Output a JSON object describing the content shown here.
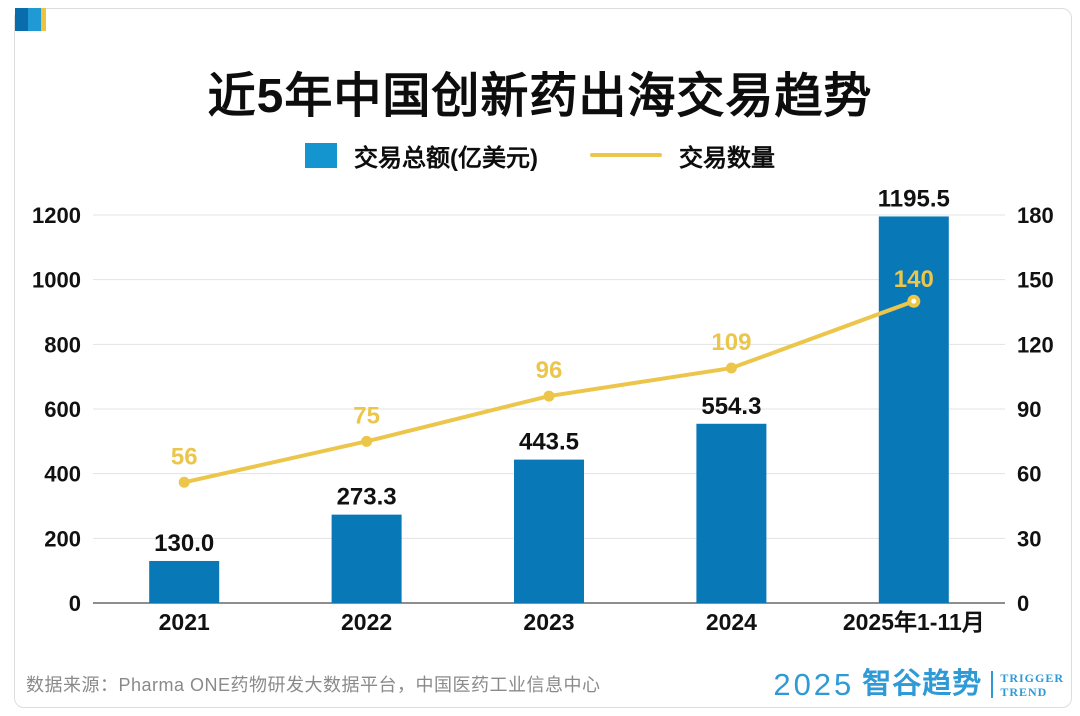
{
  "title": "近5年中国创新药出海交易趋势",
  "legend": {
    "bar_label": "交易总额(亿美元)",
    "line_label": "交易数量"
  },
  "chart_data": {
    "type": "bar+line combo",
    "categories": [
      "2021",
      "2022",
      "2023",
      "2024",
      "2025年1-11月"
    ],
    "series": [
      {
        "name": "交易总额(亿美元)",
        "type": "bar",
        "axis": "left",
        "values": [
          130.0,
          273.3,
          443.5,
          554.3,
          1195.5
        ],
        "labels": [
          "130.0",
          "273.3",
          "443.5",
          "554.3",
          "1195.5"
        ]
      },
      {
        "name": "交易数量",
        "type": "line",
        "axis": "right",
        "values": [
          56,
          75,
          96,
          109,
          140
        ],
        "labels": [
          "56",
          "75",
          "96",
          "109",
          "140"
        ]
      }
    ],
    "left_axis": {
      "min": 0,
      "max": 1200,
      "step": 200,
      "ticks": [
        "0",
        "200",
        "400",
        "600",
        "800",
        "1000",
        "1200"
      ]
    },
    "right_axis": {
      "min": 0,
      "max": 180,
      "step": 30,
      "ticks": [
        "0",
        "30",
        "60",
        "90",
        "120",
        "150",
        "180"
      ]
    },
    "grid": true,
    "legend_position": "top",
    "title": "近5年中国创新药出海交易趋势"
  },
  "footer": {
    "source": "数据来源：Pharma ONE药物研发大数据平台，中国医药工业信息中心"
  },
  "brand": {
    "year": "2025",
    "name": "智谷趋势",
    "tagline_line1": "TRIGGER",
    "tagline_line2": "TREND"
  },
  "colors": {
    "bar": "#0878b6",
    "legend_swatch": "#1495cf",
    "line": "#ecc64b",
    "value_label": "#111111",
    "grid_line": "#e3e3e3",
    "axis_line": "#8e8e8e",
    "mark_dark_blue": "#0a6dab",
    "mark_light_blue": "#1f9ad4",
    "mark_yellow": "#eec33f",
    "brand_blue": "#2e9ad6",
    "footer_gray": "#8a8a8a"
  }
}
